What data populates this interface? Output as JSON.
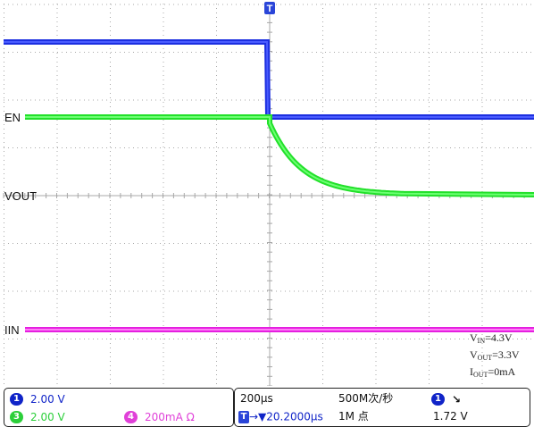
{
  "scope": {
    "trigger_marker": "T",
    "channel_labels": {
      "en": "EN",
      "vout": "VOUT",
      "iin": "IIN"
    },
    "conditions": {
      "vin_label": "V",
      "vin_sub": "IN",
      "vin_value": "=4.3V",
      "vout_label": "V",
      "vout_sub": "OUT",
      "vout_value": "=3.3V",
      "iout_label": "I",
      "iout_sub": "OUT",
      "iout_value": "=0mA"
    },
    "colors": {
      "ch1": "#1c2fe0",
      "ch3": "#22e02a",
      "ch4": "#e51fe0",
      "grid": "#9a9a9a"
    }
  },
  "status": {
    "ch1": {
      "badge": "1",
      "scale": "2.00 V",
      "color": "#1024c8"
    },
    "ch3": {
      "badge": "3",
      "scale": "2.00 V",
      "color": "#2ccf3a"
    },
    "ch4": {
      "badge": "4",
      "scale": "200mA Ω",
      "color": "#e040d8"
    },
    "timebase": "200µs",
    "sample_rate": "500M次/秒",
    "trigger_channel_badge": "1",
    "trigger_slope": "↘",
    "trigger_label": "T",
    "trigger_position": "→▼20.2000µs",
    "record_length": "1M 点",
    "trigger_level": "1.72 V"
  }
}
